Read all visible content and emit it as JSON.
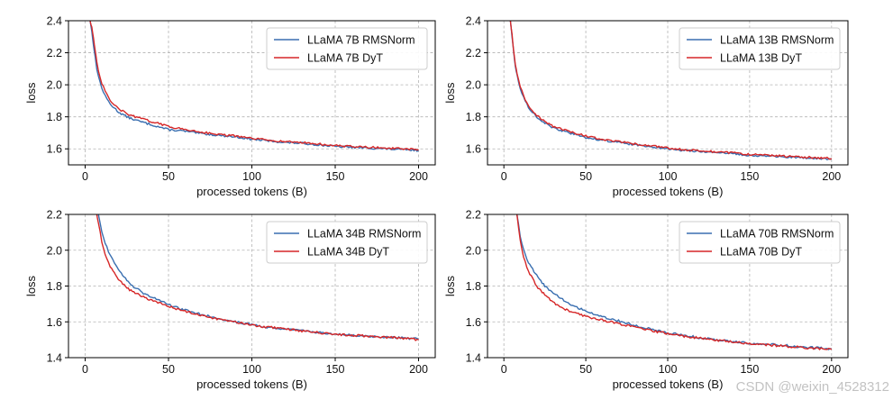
{
  "chart_data": [
    {
      "type": "line",
      "xlabel": "processed tokens (B)",
      "ylabel": "loss",
      "xlim": [
        -10,
        210
      ],
      "ylim": [
        1.5,
        2.4
      ],
      "xticks": [
        0,
        50,
        100,
        150,
        200
      ],
      "yticks": [
        1.6,
        1.8,
        2.0,
        2.2,
        2.4
      ],
      "ytick_labels": [
        "1.6",
        "1.8",
        "2.0",
        "2.2",
        "2.4"
      ],
      "grid": true,
      "legend_position": "top-right",
      "series": [
        {
          "name": "LLaMA 7B RMSNorm",
          "color": "#3a6fb0",
          "x": [
            3,
            4,
            5,
            6,
            7,
            8,
            10,
            12,
            15,
            20,
            25,
            30,
            40,
            50,
            60,
            70,
            80,
            90,
            100,
            110,
            120,
            130,
            140,
            150,
            160,
            170,
            180,
            190,
            200
          ],
          "y": [
            2.4,
            2.33,
            2.25,
            2.17,
            2.1,
            2.05,
            1.98,
            1.93,
            1.88,
            1.83,
            1.8,
            1.78,
            1.75,
            1.72,
            1.71,
            1.695,
            1.685,
            1.675,
            1.66,
            1.65,
            1.64,
            1.635,
            1.625,
            1.615,
            1.61,
            1.605,
            1.6,
            1.595,
            1.59
          ]
        },
        {
          "name": "LLaMA 7B DyT",
          "color": "#d62728",
          "x": [
            3,
            4,
            5,
            6,
            7,
            8,
            10,
            12,
            15,
            20,
            25,
            30,
            40,
            50,
            60,
            70,
            80,
            90,
            100,
            110,
            120,
            130,
            140,
            150,
            160,
            170,
            180,
            190,
            200
          ],
          "y": [
            2.4,
            2.36,
            2.29,
            2.21,
            2.14,
            2.08,
            2.01,
            1.96,
            1.9,
            1.85,
            1.82,
            1.8,
            1.77,
            1.74,
            1.72,
            1.705,
            1.69,
            1.68,
            1.665,
            1.655,
            1.645,
            1.64,
            1.63,
            1.62,
            1.615,
            1.61,
            1.605,
            1.6,
            1.595
          ]
        }
      ]
    },
    {
      "type": "line",
      "xlabel": "processed tokens (B)",
      "ylabel": "loss",
      "xlim": [
        -10,
        210
      ],
      "ylim": [
        1.5,
        2.4
      ],
      "xticks": [
        0,
        50,
        100,
        150,
        200
      ],
      "yticks": [
        1.6,
        1.8,
        2.0,
        2.2,
        2.4
      ],
      "ytick_labels": [
        "1.6",
        "1.8",
        "2.0",
        "2.2",
        "2.4"
      ],
      "grid": true,
      "legend_position": "top-right",
      "series": [
        {
          "name": "LLaMA 13B RMSNorm",
          "color": "#3a6fb0",
          "x": [
            4,
            5,
            6,
            7,
            8,
            10,
            12,
            15,
            20,
            25,
            30,
            40,
            50,
            60,
            70,
            80,
            90,
            100,
            110,
            120,
            130,
            140,
            150,
            160,
            170,
            180,
            190,
            200
          ],
          "y": [
            2.4,
            2.3,
            2.2,
            2.12,
            2.06,
            1.98,
            1.92,
            1.86,
            1.8,
            1.76,
            1.73,
            1.7,
            1.67,
            1.655,
            1.64,
            1.625,
            1.615,
            1.6,
            1.59,
            1.585,
            1.575,
            1.57,
            1.56,
            1.555,
            1.55,
            1.545,
            1.54,
            1.535
          ]
        },
        {
          "name": "LLaMA 13B DyT",
          "color": "#d62728",
          "x": [
            4,
            5,
            6,
            7,
            8,
            10,
            12,
            15,
            20,
            25,
            30,
            40,
            50,
            60,
            70,
            80,
            90,
            100,
            110,
            120,
            130,
            140,
            150,
            160,
            170,
            180,
            190,
            200
          ],
          "y": [
            2.4,
            2.31,
            2.21,
            2.13,
            2.07,
            1.99,
            1.93,
            1.87,
            1.81,
            1.77,
            1.74,
            1.71,
            1.68,
            1.66,
            1.645,
            1.63,
            1.62,
            1.605,
            1.595,
            1.59,
            1.58,
            1.575,
            1.565,
            1.56,
            1.555,
            1.55,
            1.545,
            1.54
          ]
        }
      ]
    },
    {
      "type": "line",
      "xlabel": "processed tokens (B)",
      "ylabel": "loss",
      "xlim": [
        -10,
        210
      ],
      "ylim": [
        1.4,
        2.2
      ],
      "xticks": [
        0,
        50,
        100,
        150,
        200
      ],
      "yticks": [
        1.4,
        1.6,
        1.8,
        2.0,
        2.2
      ],
      "ytick_labels": [
        "1.4",
        "1.6",
        "1.8",
        "2.0",
        "2.2"
      ],
      "grid": true,
      "legend_position": "top-right",
      "series": [
        {
          "name": "LLaMA 34B RMSNorm",
          "color": "#3a6fb0",
          "x": [
            8,
            10,
            12,
            15,
            20,
            25,
            30,
            35,
            40,
            50,
            60,
            70,
            80,
            90,
            100,
            110,
            120,
            130,
            140,
            150,
            160,
            170,
            180,
            190,
            200
          ],
          "y": [
            2.2,
            2.1,
            2.04,
            1.97,
            1.89,
            1.83,
            1.79,
            1.76,
            1.74,
            1.695,
            1.665,
            1.64,
            1.62,
            1.6,
            1.585,
            1.57,
            1.56,
            1.55,
            1.54,
            1.53,
            1.525,
            1.52,
            1.515,
            1.51,
            1.505
          ]
        },
        {
          "name": "LLaMA 34B DyT",
          "color": "#d62728",
          "x": [
            7,
            8,
            10,
            12,
            15,
            20,
            25,
            30,
            35,
            40,
            50,
            60,
            70,
            80,
            90,
            100,
            110,
            120,
            130,
            140,
            150,
            160,
            170,
            180,
            190,
            200
          ],
          "y": [
            2.2,
            2.15,
            2.05,
            1.98,
            1.91,
            1.84,
            1.79,
            1.76,
            1.74,
            1.72,
            1.685,
            1.66,
            1.635,
            1.615,
            1.6,
            1.58,
            1.57,
            1.56,
            1.55,
            1.54,
            1.53,
            1.525,
            1.52,
            1.515,
            1.51,
            1.5
          ]
        }
      ]
    },
    {
      "type": "line",
      "xlabel": "processed tokens (B)",
      "ylabel": "loss",
      "xlim": [
        -10,
        210
      ],
      "ylim": [
        1.4,
        2.2
      ],
      "xticks": [
        0,
        50,
        100,
        150,
        200
      ],
      "yticks": [
        1.4,
        1.6,
        1.8,
        2.0,
        2.2
      ],
      "ytick_labels": [
        "1.4",
        "1.6",
        "1.8",
        "2.0",
        "2.2"
      ],
      "grid": true,
      "legend_position": "top-right",
      "series": [
        {
          "name": "LLaMA 70B RMSNorm",
          "color": "#3a6fb0",
          "x": [
            8,
            10,
            12,
            15,
            20,
            25,
            30,
            35,
            40,
            50,
            60,
            70,
            80,
            90,
            100,
            110,
            120,
            130,
            140,
            150,
            160,
            170,
            180,
            190,
            200
          ],
          "y": [
            2.2,
            2.08,
            2.0,
            1.93,
            1.86,
            1.8,
            1.76,
            1.73,
            1.7,
            1.66,
            1.63,
            1.605,
            1.58,
            1.56,
            1.54,
            1.525,
            1.51,
            1.5,
            1.49,
            1.48,
            1.475,
            1.47,
            1.46,
            1.455,
            1.45
          ]
        },
        {
          "name": "LLaMA 70B DyT",
          "color": "#d62728",
          "x": [
            8,
            10,
            12,
            15,
            20,
            25,
            30,
            35,
            40,
            50,
            60,
            70,
            80,
            90,
            100,
            110,
            120,
            130,
            140,
            150,
            160,
            170,
            180,
            190,
            200
          ],
          "y": [
            2.2,
            2.05,
            1.96,
            1.88,
            1.8,
            1.75,
            1.71,
            1.68,
            1.66,
            1.63,
            1.61,
            1.59,
            1.57,
            1.55,
            1.535,
            1.52,
            1.508,
            1.498,
            1.488,
            1.478,
            1.472,
            1.465,
            1.458,
            1.452,
            1.446
          ]
        }
      ]
    }
  ],
  "watermark": "CSDN @weixin_4528312"
}
